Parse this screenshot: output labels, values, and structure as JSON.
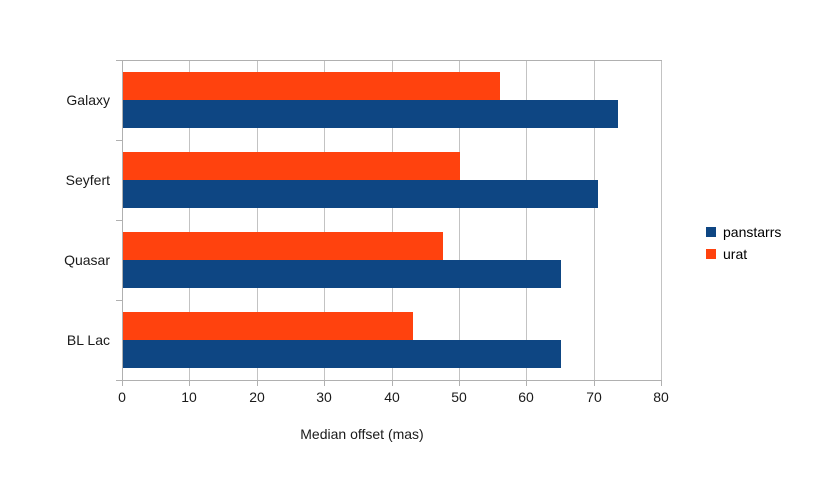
{
  "chart_data": {
    "type": "bar",
    "orientation": "horizontal",
    "title": "",
    "xlabel": "Median offset (mas)",
    "ylabel": "",
    "xlim": [
      0,
      80
    ],
    "xticks": [
      0,
      10,
      20,
      30,
      40,
      50,
      60,
      70,
      80
    ],
    "grid": "vertical",
    "legend_position": "right",
    "categories": [
      "Galaxy",
      "Seyfert",
      "Quasar",
      "BL Lac"
    ],
    "series": [
      {
        "name": "panstarrs",
        "color": "#0E4683",
        "values": [
          73.5,
          70.5,
          65,
          65
        ]
      },
      {
        "name": "urat",
        "color": "#FF420E",
        "values": [
          56,
          50,
          47.5,
          43
        ]
      }
    ],
    "colors": {
      "grid": "#c3c3c3",
      "axis": "#b0b0b0",
      "text": "#1a1a1a"
    }
  }
}
